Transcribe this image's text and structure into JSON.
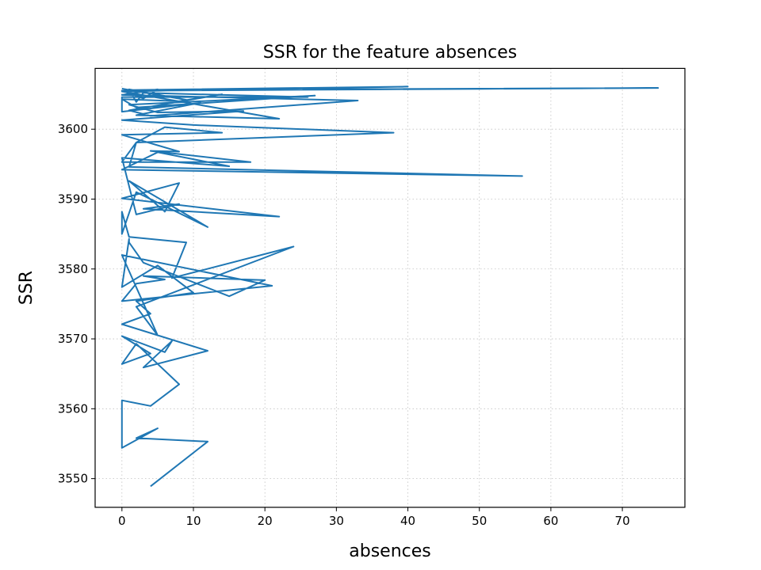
{
  "chart_data": {
    "type": "line",
    "title": "SSR for the feature absences",
    "xlabel": "absences",
    "ylabel": "SSR",
    "xlim": [
      -3.75,
      78.75
    ],
    "ylim": [
      3545.9,
      3608.7
    ],
    "xticks": [
      0,
      10,
      20,
      30,
      40,
      50,
      60,
      70
    ],
    "yticks": [
      3550,
      3560,
      3570,
      3580,
      3590,
      3600
    ],
    "grid": true,
    "color": "#1f77b4",
    "series": [
      {
        "x": [
          4,
          12,
          2,
          5,
          0,
          0,
          4,
          8,
          2,
          0,
          4,
          0,
          6,
          7,
          3,
          12,
          0,
          4,
          2,
          10,
          5,
          0,
          1,
          1,
          3,
          15,
          20,
          3,
          6,
          2,
          0,
          21,
          0,
          5,
          2,
          24,
          7,
          9,
          1,
          0,
          0,
          2,
          12,
          1,
          6,
          8,
          0,
          22,
          3,
          8,
          2,
          0,
          15,
          5,
          0,
          56,
          1,
          2,
          0,
          18,
          4,
          8,
          0,
          14,
          6,
          2,
          38,
          10,
          0,
          17,
          5,
          1,
          27,
          2,
          0,
          8,
          14,
          1,
          4,
          33,
          0,
          5,
          3,
          0,
          75,
          1,
          40,
          0,
          22,
          2,
          11,
          0,
          0,
          26,
          3,
          2,
          1,
          9,
          0
        ],
        "y": [
          3548.9,
          3555.3,
          3555.8,
          3557.2,
          3554.4,
          3561.2,
          3560.4,
          3563.5,
          3569.3,
          3566.4,
          3567.9,
          3570.4,
          3568.1,
          3569.7,
          3565.9,
          3568.3,
          3572.1,
          3573.6,
          3575.4,
          3576.6,
          3580.5,
          3577.4,
          3584.3,
          3583.8,
          3580.9,
          3576.1,
          3578.4,
          3579.0,
          3578.5,
          3577.9,
          3575.4,
          3577.6,
          3582.0,
          3570.5,
          3574.6,
          3583.2,
          3578.7,
          3583.8,
          3584.6,
          3588.2,
          3585.0,
          3591.0,
          3586.0,
          3592.6,
          3588.2,
          3592.3,
          3590.1,
          3587.5,
          3588.6,
          3589.3,
          3587.8,
          3595.9,
          3594.7,
          3596.7,
          3594.2,
          3593.3,
          3594.6,
          3598.1,
          3595.3,
          3595.3,
          3596.9,
          3596.8,
          3599.2,
          3599.5,
          3600.3,
          3598.1,
          3599.5,
          3600.6,
          3601.3,
          3602.6,
          3602.4,
          3603.5,
          3604.8,
          3603.1,
          3604.3,
          3604.0,
          3605.0,
          3602.7,
          3601.9,
          3604.1,
          3604.9,
          3605.7,
          3604.4,
          3605.5,
          3605.9,
          3605.6,
          3606.1,
          3605.4,
          3601.5,
          3602.0,
          3603.8,
          3602.5,
          3604.6,
          3604.6,
          3605.2,
          3603.9,
          3605.7,
          3604.2,
          3605.8
        ]
      }
    ]
  }
}
